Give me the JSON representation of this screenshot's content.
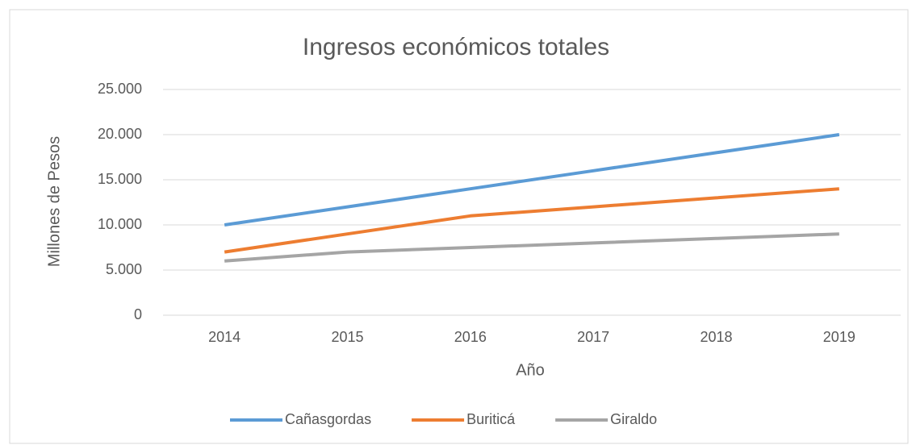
{
  "chart_data": {
    "type": "line",
    "title": "Ingresos económicos totales",
    "x_label": "Año",
    "y_label": "Millones de Pesos",
    "categories": [
      "2014",
      "2015",
      "2016",
      "2017",
      "2018",
      "2019"
    ],
    "series": [
      {
        "name": "Cañasgordas",
        "color": "#5b9bd5",
        "values": [
          10000,
          12000,
          14000,
          16000,
          18000,
          20000
        ]
      },
      {
        "name": "Buriticá",
        "color": "#ed7d31",
        "values": [
          7000,
          9000,
          11000,
          12000,
          13000,
          14000
        ]
      },
      {
        "name": "Giraldo",
        "color": "#a5a5a5",
        "values": [
          6000,
          7000,
          7500,
          8000,
          8500,
          9000
        ]
      }
    ],
    "ylim": [
      0,
      25000
    ],
    "yticks": [
      0,
      {
        "value": 5000,
        "label": "5.000"
      },
      {
        "value": 10000,
        "label": "10.000"
      },
      {
        "value": 15000,
        "label": "15.000"
      },
      {
        "value": 20000,
        "label": "20.000"
      },
      {
        "value": 25000,
        "label": "25.000"
      }
    ],
    "grid": true,
    "legend": "bottom"
  }
}
